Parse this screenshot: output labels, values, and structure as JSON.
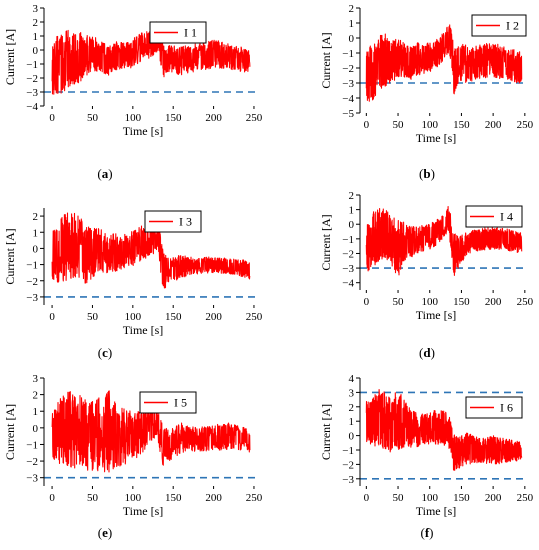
{
  "colors": {
    "signal": "#ff0000",
    "threshold": "#2e75b6",
    "axis": "#000000"
  },
  "chart_data": [
    {
      "panel": "(a)",
      "type": "line",
      "xlabel": "Time [s]",
      "ylabel": "Current [A]",
      "xlim": [
        -10,
        255
      ],
      "ylim": [
        -4,
        3
      ],
      "xticks": [
        0,
        50,
        100,
        150,
        200,
        250
      ],
      "yticks": [
        -4,
        -3,
        -2,
        -1,
        0,
        1,
        2,
        3
      ],
      "legend": {
        "label": "I 1",
        "placement": "top-right"
      },
      "thresholds": [
        -3
      ],
      "series": [
        {
          "name": "I 1",
          "band": {
            "x": [
              0,
              10,
              20,
              30,
              40,
              50,
              60,
              70,
              80,
              90,
              100,
              110,
              120,
              130,
              134,
              138,
              145,
              160,
              180,
              200,
              220,
              240,
              245
            ],
            "max": [
              0.8,
              1.2,
              1.4,
              1.3,
              1.2,
              1.0,
              0.7,
              0.3,
              0.6,
              0.5,
              0.8,
              1.2,
              1.5,
              2.1,
              1.5,
              0.5,
              0.4,
              0.3,
              0.5,
              0.8,
              0.4,
              0.2,
              0.0
            ],
            "min": [
              -3.2,
              -3.3,
              -2.8,
              -2.5,
              -2.0,
              -1.5,
              -1.6,
              -1.8,
              -1.5,
              -1.4,
              -1.3,
              -1.0,
              -0.6,
              -0.2,
              -1.0,
              -2.0,
              -1.6,
              -1.8,
              -1.5,
              -1.3,
              -1.4,
              -1.6,
              -1.5
            ]
          }
        }
      ]
    },
    {
      "panel": "(b)",
      "type": "line",
      "xlabel": "Time [s]",
      "ylabel": "Current [A]",
      "xlim": [
        -10,
        255
      ],
      "ylim": [
        -5,
        2
      ],
      "xticks": [
        0,
        50,
        100,
        150,
        200,
        250
      ],
      "yticks": [
        -5,
        -4,
        -3,
        -2,
        -1,
        0,
        1,
        2
      ],
      "legend": {
        "label": "I 2",
        "placement": "top-right"
      },
      "thresholds": [
        -3
      ],
      "series": [
        {
          "name": "I 2",
          "band": {
            "x": [
              0,
              10,
              20,
              30,
              40,
              50,
              60,
              70,
              80,
              90,
              100,
              110,
              120,
              130,
              134,
              138,
              145,
              160,
              180,
              200,
              220,
              240,
              245
            ],
            "max": [
              -0.8,
              -0.3,
              0.2,
              0.3,
              -0.2,
              0.0,
              -0.3,
              -0.6,
              -0.3,
              -0.4,
              -0.3,
              0.0,
              0.3,
              1.2,
              0.5,
              -0.5,
              -0.3,
              -0.5,
              -0.4,
              -0.3,
              -0.6,
              -0.8,
              -0.9
            ],
            "min": [
              -4.5,
              -4.2,
              -3.5,
              -3.2,
              -3.0,
              -2.6,
              -2.7,
              -2.9,
              -2.5,
              -2.4,
              -2.3,
              -2.0,
              -1.6,
              -1.0,
              -2.0,
              -3.8,
              -3.0,
              -3.0,
              -2.7,
              -2.6,
              -2.8,
              -3.0,
              -3.2
            ]
          }
        }
      ]
    },
    {
      "panel": "(c)",
      "type": "line",
      "xlabel": "Time [s]",
      "ylabel": "Current [A]",
      "xlim": [
        -10,
        255
      ],
      "ylim": [
        -3.5,
        2.5
      ],
      "xticks": [
        0,
        50,
        100,
        150,
        200,
        250
      ],
      "yticks": [
        -3,
        -2,
        -1,
        0,
        1,
        2
      ],
      "legend": {
        "label": "I 3",
        "placement": "top-right"
      },
      "thresholds": [
        -3
      ],
      "series": [
        {
          "name": "I 3",
          "band": {
            "x": [
              0,
              10,
              20,
              30,
              40,
              50,
              60,
              70,
              80,
              90,
              100,
              110,
              120,
              130,
              134,
              138,
              145,
              160,
              180,
              200,
              220,
              240,
              245
            ],
            "max": [
              1.0,
              1.8,
              2.4,
              2.2,
              1.6,
              1.3,
              1.2,
              0.8,
              1.0,
              0.9,
              1.1,
              1.4,
              1.8,
              2.2,
              1.2,
              -0.3,
              -0.6,
              -0.4,
              -0.6,
              -0.5,
              -0.6,
              -0.7,
              -0.8
            ],
            "min": [
              -2.0,
              -2.2,
              -2.1,
              -1.8,
              -2.4,
              -1.8,
              -1.5,
              -1.6,
              -1.4,
              -1.2,
              -1.1,
              -0.8,
              -0.5,
              -0.2,
              -1.5,
              -2.6,
              -2.2,
              -1.8,
              -1.6,
              -1.5,
              -1.6,
              -1.8,
              -1.9
            ]
          }
        }
      ]
    },
    {
      "panel": "(d)",
      "type": "line",
      "xlabel": "Time [s]",
      "ylabel": "Current [A]",
      "xlim": [
        -10,
        255
      ],
      "ylim": [
        -4.5,
        2
      ],
      "xticks": [
        0,
        50,
        100,
        150,
        200,
        250
      ],
      "yticks": [
        -4,
        -3,
        -2,
        -1,
        0,
        1,
        2
      ],
      "legend": {
        "label": "I 4",
        "placement": "top-right"
      },
      "thresholds": [
        -3
      ],
      "series": [
        {
          "name": "I 4",
          "band": {
            "x": [
              0,
              10,
              20,
              30,
              40,
              50,
              60,
              70,
              80,
              90,
              100,
              110,
              120,
              130,
              134,
              138,
              145,
              160,
              180,
              200,
              220,
              240,
              245
            ],
            "max": [
              0.2,
              0.8,
              1.2,
              1.1,
              0.6,
              0.4,
              0.2,
              -0.2,
              0.0,
              -0.1,
              0.0,
              0.3,
              0.6,
              1.3,
              0.4,
              -0.6,
              -0.8,
              -0.5,
              -0.3,
              -0.2,
              -0.3,
              -0.5,
              -0.6
            ],
            "min": [
              -3.3,
              -3.0,
              -2.5,
              -2.3,
              -2.8,
              -3.7,
              -2.5,
              -2.3,
              -2.0,
              -1.9,
              -1.8,
              -1.5,
              -1.0,
              -0.6,
              -2.0,
              -3.7,
              -3.0,
              -2.0,
              -1.8,
              -1.7,
              -1.8,
              -2.0,
              -2.1
            ]
          }
        }
      ]
    },
    {
      "panel": "(e)",
      "type": "line",
      "xlabel": "Time [s]",
      "ylabel": "Current [A]",
      "xlim": [
        -10,
        255
      ],
      "ylim": [
        -3.5,
        3
      ],
      "xticks": [
        0,
        50,
        100,
        150,
        200,
        250
      ],
      "yticks": [
        -3,
        -2,
        -1,
        0,
        1,
        2,
        3
      ],
      "legend": {
        "label": "I 5",
        "placement": "top-right"
      },
      "thresholds": [
        -3
      ],
      "series": [
        {
          "name": "I 5",
          "band": {
            "x": [
              0,
              10,
              20,
              30,
              40,
              50,
              60,
              70,
              80,
              90,
              100,
              110,
              120,
              130,
              134,
              138,
              145,
              160,
              180,
              200,
              220,
              240,
              245
            ],
            "max": [
              1.2,
              1.8,
              2.3,
              2.2,
              1.9,
              1.6,
              1.9,
              2.4,
              1.5,
              1.2,
              1.0,
              1.0,
              1.2,
              1.8,
              0.6,
              0.0,
              0.0,
              0.3,
              0.0,
              0.2,
              0.3,
              0.0,
              -0.4
            ],
            "min": [
              -2.0,
              -2.2,
              -2.4,
              -2.5,
              -2.6,
              -2.7,
              -2.6,
              -2.8,
              -2.4,
              -2.2,
              -2.0,
              -1.6,
              -1.0,
              -0.6,
              -1.5,
              -2.6,
              -2.0,
              -1.5,
              -1.4,
              -1.4,
              -1.3,
              -1.4,
              -1.5
            ]
          }
        }
      ]
    },
    {
      "panel": "(f)",
      "type": "line",
      "xlabel": "Time [s]",
      "ylabel": "Current [A]",
      "xlim": [
        -10,
        255
      ],
      "ylim": [
        -3.5,
        4
      ],
      "xticks": [
        0,
        50,
        100,
        150,
        200,
        250
      ],
      "yticks": [
        -3,
        -2,
        -1,
        0,
        1,
        2,
        3,
        4
      ],
      "legend": {
        "label": "I 6",
        "placement": "top-right"
      },
      "thresholds": [
        3,
        -3
      ],
      "series": [
        {
          "name": "I 6",
          "band": {
            "x": [
              0,
              10,
              20,
              30,
              40,
              50,
              60,
              70,
              80,
              90,
              100,
              110,
              120,
              130,
              134,
              138,
              145,
              160,
              180,
              200,
              220,
              240,
              245
            ],
            "max": [
              2.4,
              2.9,
              3.2,
              3.0,
              2.6,
              3.3,
              2.5,
              1.8,
              1.6,
              1.5,
              1.6,
              1.8,
              1.9,
              1.5,
              0.8,
              0.2,
              0.0,
              0.2,
              -0.2,
              0.0,
              -0.2,
              -0.4,
              -0.5
            ],
            "min": [
              -0.5,
              -0.8,
              -0.9,
              -1.0,
              -1.2,
              -1.0,
              -0.8,
              -0.9,
              -0.8,
              -0.7,
              -0.6,
              -0.6,
              -0.6,
              -1.0,
              -2.0,
              -2.8,
              -2.3,
              -2.0,
              -1.9,
              -2.0,
              -1.9,
              -1.8,
              -1.7
            ]
          }
        }
      ]
    }
  ]
}
